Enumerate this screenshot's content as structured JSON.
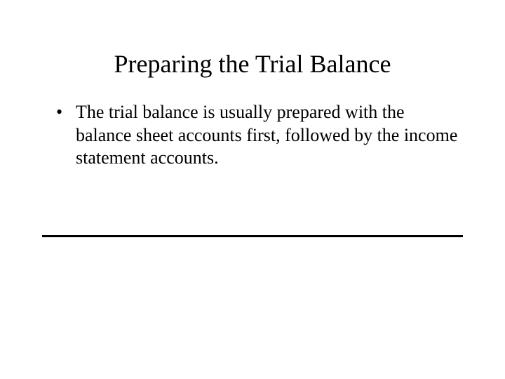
{
  "slide": {
    "title": "Preparing the Trial Balance",
    "bullets": [
      {
        "text": "The trial balance is usually prepared with the balance sheet accounts first, followed by the income statement accounts."
      }
    ]
  },
  "styling": {
    "background_color": "#ffffff",
    "text_color": "#000000",
    "font_family": "Times New Roman",
    "title_fontsize": 36,
    "body_fontsize": 26,
    "divider_color": "#000000",
    "divider_thickness": 3,
    "slide_width": 720,
    "slide_height": 540
  }
}
